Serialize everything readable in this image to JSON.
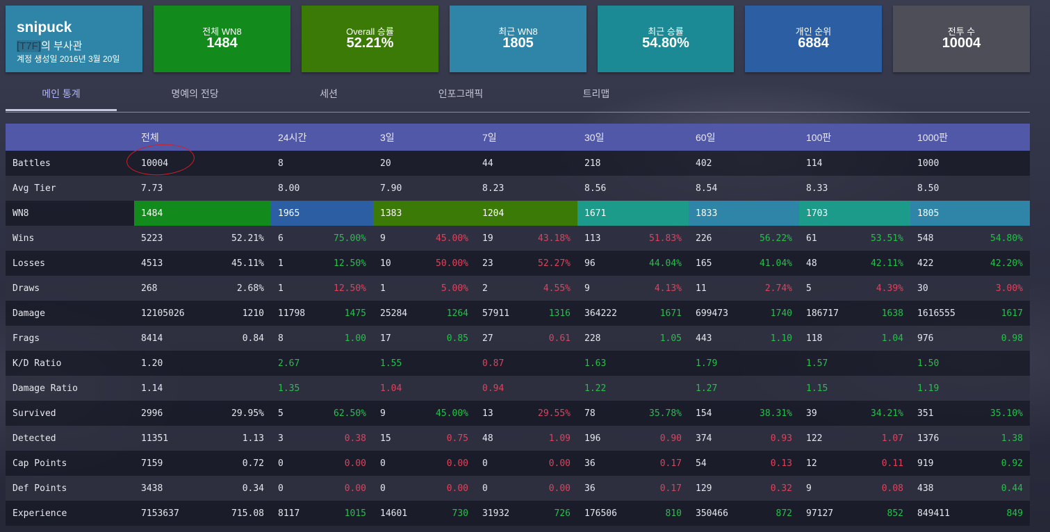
{
  "profile": {
    "name": "snipuck",
    "clan_tag": "[T7F]",
    "clan_rank": "의 부사관",
    "created": "계정 생성일 2016년 3월 20일"
  },
  "summary_cards": [
    {
      "label": "전체 WN8",
      "value": "1484",
      "color": "#128a1c"
    },
    {
      "label": "Overall 승률",
      "value": "52.21%",
      "color": "#3b7a06"
    },
    {
      "label": "최근 WN8",
      "value": "1805",
      "color": "#2e85a8"
    },
    {
      "label": "최근 승률",
      "value": "54.80%",
      "color": "#1c8a94"
    },
    {
      "label": "개인 순위",
      "value": "6884",
      "color": "#2c5ea3"
    },
    {
      "label": "전투 수",
      "value": "10004",
      "color": "#4d4e58"
    }
  ],
  "tabs": [
    "메인 통계",
    "명예의 전당",
    "세션",
    "인포그래픽",
    "트리맵"
  ],
  "table": {
    "columns": [
      "전체",
      "24시간",
      "3일",
      "7일",
      "30일",
      "60일",
      "100판",
      "1000판"
    ],
    "wn8_colors": [
      "#128a1c",
      "#2c5ea3",
      "#3b7a06",
      "#3b7a06",
      "#1c9a8a",
      "#2e85a8",
      "#1c9a8a",
      "#2e85a8"
    ],
    "rows": [
      {
        "label": "Battles",
        "cells": [
          {
            "a": "10004"
          },
          {
            "a": "8"
          },
          {
            "a": "20"
          },
          {
            "a": "44"
          },
          {
            "a": "218"
          },
          {
            "a": "402"
          },
          {
            "a": "114"
          },
          {
            "a": "1000"
          }
        ]
      },
      {
        "label": "Avg Tier",
        "cells": [
          {
            "a": "7.73"
          },
          {
            "a": "8.00"
          },
          {
            "a": "7.90"
          },
          {
            "a": "8.23"
          },
          {
            "a": "8.56"
          },
          {
            "a": "8.54"
          },
          {
            "a": "8.33"
          },
          {
            "a": "8.50"
          }
        ]
      },
      {
        "label": "WN8",
        "wn8": true,
        "cells": [
          {
            "a": "1484"
          },
          {
            "a": "1965"
          },
          {
            "a": "1383"
          },
          {
            "a": "1204"
          },
          {
            "a": "1671"
          },
          {
            "a": "1833"
          },
          {
            "a": "1703"
          },
          {
            "a": "1805"
          }
        ]
      },
      {
        "label": "Wins",
        "cells": [
          {
            "a": "5223",
            "b": "52.21%",
            "c": "n"
          },
          {
            "a": "6",
            "b": "75.00%",
            "c": "p"
          },
          {
            "a": "9",
            "b": "45.00%",
            "c": "m"
          },
          {
            "a": "19",
            "b": "43.18%",
            "c": "m"
          },
          {
            "a": "113",
            "b": "51.83%",
            "c": "m"
          },
          {
            "a": "226",
            "b": "56.22%",
            "c": "p"
          },
          {
            "a": "61",
            "b": "53.51%",
            "c": "p"
          },
          {
            "a": "548",
            "b": "54.80%",
            "c": "p"
          }
        ]
      },
      {
        "label": "Losses",
        "cells": [
          {
            "a": "4513",
            "b": "45.11%",
            "c": "n"
          },
          {
            "a": "1",
            "b": "12.50%",
            "c": "p"
          },
          {
            "a": "10",
            "b": "50.00%",
            "c": "m"
          },
          {
            "a": "23",
            "b": "52.27%",
            "c": "m"
          },
          {
            "a": "96",
            "b": "44.04%",
            "c": "p"
          },
          {
            "a": "165",
            "b": "41.04%",
            "c": "p"
          },
          {
            "a": "48",
            "b": "42.11%",
            "c": "p"
          },
          {
            "a": "422",
            "b": "42.20%",
            "c": "p"
          }
        ]
      },
      {
        "label": "Draws",
        "cells": [
          {
            "a": "268",
            "b": "2.68%",
            "c": "n"
          },
          {
            "a": "1",
            "b": "12.50%",
            "c": "m"
          },
          {
            "a": "1",
            "b": "5.00%",
            "c": "m"
          },
          {
            "a": "2",
            "b": "4.55%",
            "c": "m"
          },
          {
            "a": "9",
            "b": "4.13%",
            "c": "m"
          },
          {
            "a": "11",
            "b": "2.74%",
            "c": "m"
          },
          {
            "a": "5",
            "b": "4.39%",
            "c": "m"
          },
          {
            "a": "30",
            "b": "3.00%",
            "c": "m"
          }
        ]
      },
      {
        "label": "Damage",
        "cells": [
          {
            "a": "12105026",
            "b": "1210",
            "c": "n"
          },
          {
            "a": "11798",
            "b": "1475",
            "c": "p"
          },
          {
            "a": "25284",
            "b": "1264",
            "c": "p"
          },
          {
            "a": "57911",
            "b": "1316",
            "c": "p"
          },
          {
            "a": "364222",
            "b": "1671",
            "c": "p"
          },
          {
            "a": "699473",
            "b": "1740",
            "c": "p"
          },
          {
            "a": "186717",
            "b": "1638",
            "c": "p"
          },
          {
            "a": "1616555",
            "b": "1617",
            "c": "p"
          }
        ]
      },
      {
        "label": "Frags",
        "cells": [
          {
            "a": "8414",
            "b": "0.84",
            "c": "n"
          },
          {
            "a": "8",
            "b": "1.00",
            "c": "p"
          },
          {
            "a": "17",
            "b": "0.85",
            "c": "p"
          },
          {
            "a": "27",
            "b": "0.61",
            "c": "m"
          },
          {
            "a": "228",
            "b": "1.05",
            "c": "p"
          },
          {
            "a": "443",
            "b": "1.10",
            "c": "p"
          },
          {
            "a": "118",
            "b": "1.04",
            "c": "p"
          },
          {
            "a": "976",
            "b": "0.98",
            "c": "p"
          }
        ]
      },
      {
        "label": "K/D Ratio",
        "cells": [
          {
            "a": "1.20"
          },
          {
            "a": "2.67",
            "ac": "p"
          },
          {
            "a": "1.55",
            "ac": "p"
          },
          {
            "a": "0.87",
            "ac": "m"
          },
          {
            "a": "1.63",
            "ac": "p"
          },
          {
            "a": "1.79",
            "ac": "p"
          },
          {
            "a": "1.57",
            "ac": "p"
          },
          {
            "a": "1.50",
            "ac": "p"
          }
        ]
      },
      {
        "label": "Damage Ratio",
        "cells": [
          {
            "a": "1.14"
          },
          {
            "a": "1.35",
            "ac": "p"
          },
          {
            "a": "1.04",
            "ac": "m"
          },
          {
            "a": "0.94",
            "ac": "m"
          },
          {
            "a": "1.22",
            "ac": "p"
          },
          {
            "a": "1.27",
            "ac": "p"
          },
          {
            "a": "1.15",
            "ac": "p"
          },
          {
            "a": "1.19",
            "ac": "p"
          }
        ]
      },
      {
        "label": "Survived",
        "cells": [
          {
            "a": "2996",
            "b": "29.95%",
            "c": "n"
          },
          {
            "a": "5",
            "b": "62.50%",
            "c": "p"
          },
          {
            "a": "9",
            "b": "45.00%",
            "c": "p"
          },
          {
            "a": "13",
            "b": "29.55%",
            "c": "m"
          },
          {
            "a": "78",
            "b": "35.78%",
            "c": "p"
          },
          {
            "a": "154",
            "b": "38.31%",
            "c": "p"
          },
          {
            "a": "39",
            "b": "34.21%",
            "c": "p"
          },
          {
            "a": "351",
            "b": "35.10%",
            "c": "p"
          }
        ]
      },
      {
        "label": "Detected",
        "cells": [
          {
            "a": "11351",
            "b": "1.13",
            "c": "n"
          },
          {
            "a": "3",
            "b": "0.38",
            "c": "m"
          },
          {
            "a": "15",
            "b": "0.75",
            "c": "m"
          },
          {
            "a": "48",
            "b": "1.09",
            "c": "m"
          },
          {
            "a": "196",
            "b": "0.90",
            "c": "m"
          },
          {
            "a": "374",
            "b": "0.93",
            "c": "m"
          },
          {
            "a": "122",
            "b": "1.07",
            "c": "m"
          },
          {
            "a": "1376",
            "b": "1.38",
            "c": "p"
          }
        ]
      },
      {
        "label": "Cap Points",
        "cells": [
          {
            "a": "7159",
            "b": "0.72",
            "c": "n"
          },
          {
            "a": "0",
            "b": "0.00",
            "c": "m"
          },
          {
            "a": "0",
            "b": "0.00",
            "c": "m"
          },
          {
            "a": "0",
            "b": "0.00",
            "c": "m"
          },
          {
            "a": "36",
            "b": "0.17",
            "c": "m"
          },
          {
            "a": "54",
            "b": "0.13",
            "c": "m"
          },
          {
            "a": "12",
            "b": "0.11",
            "c": "m"
          },
          {
            "a": "919",
            "b": "0.92",
            "c": "p"
          }
        ]
      },
      {
        "label": "Def Points",
        "cells": [
          {
            "a": "3438",
            "b": "0.34",
            "c": "n"
          },
          {
            "a": "0",
            "b": "0.00",
            "c": "m"
          },
          {
            "a": "0",
            "b": "0.00",
            "c": "m"
          },
          {
            "a": "0",
            "b": "0.00",
            "c": "m"
          },
          {
            "a": "36",
            "b": "0.17",
            "c": "m"
          },
          {
            "a": "129",
            "b": "0.32",
            "c": "m"
          },
          {
            "a": "9",
            "b": "0.08",
            "c": "m"
          },
          {
            "a": "438",
            "b": "0.44",
            "c": "p"
          }
        ]
      },
      {
        "label": "Experience",
        "cells": [
          {
            "a": "7153637",
            "b": "715.08",
            "c": "n"
          },
          {
            "a": "8117",
            "b": "1015",
            "c": "p"
          },
          {
            "a": "14601",
            "b": "730",
            "c": "p"
          },
          {
            "a": "31932",
            "b": "726",
            "c": "p"
          },
          {
            "a": "176506",
            "b": "810",
            "c": "p"
          },
          {
            "a": "350466",
            "b": "872",
            "c": "p"
          },
          {
            "a": "97127",
            "b": "852",
            "c": "p"
          },
          {
            "a": "849411",
            "b": "849",
            "c": "p"
          }
        ]
      }
    ]
  }
}
